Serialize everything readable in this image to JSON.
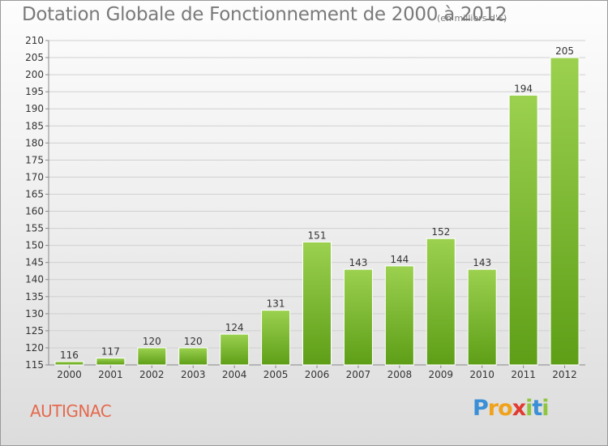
{
  "title": "Dotation Globale de Fonctionnement de 2000 à 2012",
  "subtitle": "(en milliers d'€)",
  "commune": "AUTIGNAC",
  "logo": {
    "letters": [
      "P",
      "r",
      "o",
      "x",
      "i",
      "t",
      "i"
    ],
    "colors": [
      "#3a8fd6",
      "#f0a21c",
      "#f0a21c",
      "#e23a2f",
      "#8ec63f",
      "#3a8fd6",
      "#8ec63f"
    ]
  },
  "colors": {
    "bar_light": "#9bd14f",
    "bar_dark": "#5e9e17",
    "grid": "#d0d0d0",
    "text": "#333333"
  },
  "chart_data": {
    "type": "bar",
    "categories": [
      "2000",
      "2001",
      "2002",
      "2003",
      "2004",
      "2005",
      "2006",
      "2007",
      "2008",
      "2009",
      "2010",
      "2011",
      "2012"
    ],
    "values": [
      116,
      117,
      120,
      120,
      124,
      131,
      151,
      143,
      144,
      152,
      143,
      194,
      205
    ],
    "ylim": [
      115,
      210
    ],
    "yticks": [
      115,
      120,
      125,
      130,
      135,
      140,
      145,
      150,
      155,
      160,
      165,
      170,
      175,
      180,
      185,
      190,
      195,
      200,
      205,
      210
    ],
    "grid": true
  }
}
